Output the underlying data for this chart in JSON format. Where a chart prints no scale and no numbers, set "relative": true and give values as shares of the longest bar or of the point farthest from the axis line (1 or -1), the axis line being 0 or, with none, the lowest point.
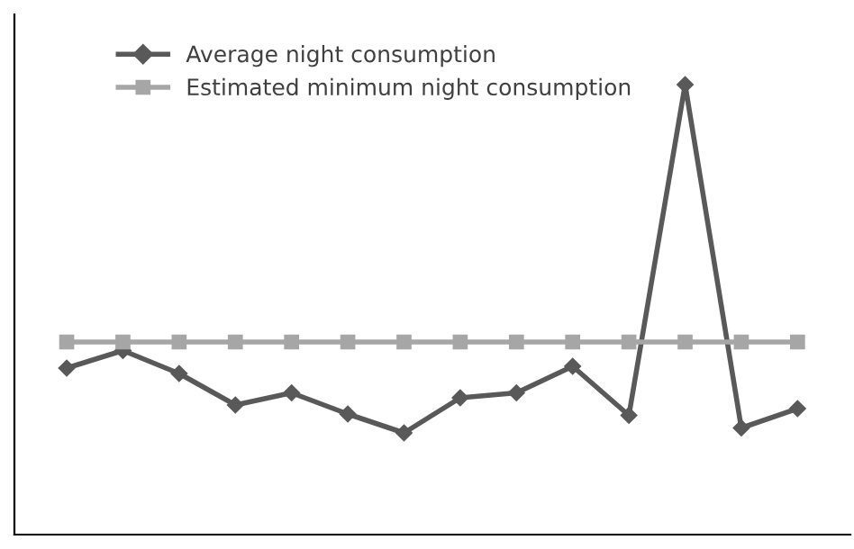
{
  "chart_data": {
    "type": "line",
    "relative": true,
    "categories": [
      null,
      null,
      null,
      null,
      null,
      null,
      null,
      null,
      null,
      null,
      null,
      null,
      null,
      null
    ],
    "series": [
      {
        "name": "Average night consumption",
        "color": "#595959",
        "marker": "diamond",
        "values": [
          0.37,
          0.409,
          0.358,
          0.288,
          0.315,
          0.268,
          0.226,
          0.304,
          0.315,
          0.374,
          0.265,
          1,
          0.237,
          0.28
        ]
      },
      {
        "name": "Estimated minimum night consumption",
        "color": "#a6a6a6",
        "marker": "square",
        "values": [
          0.428,
          0.428,
          0.428,
          0.428,
          0.428,
          0.428,
          0.428,
          0.428,
          0.428,
          0.428,
          0.428,
          0.428,
          0.428,
          0.428
        ]
      }
    ],
    "legend": "top left",
    "grid": false
  }
}
